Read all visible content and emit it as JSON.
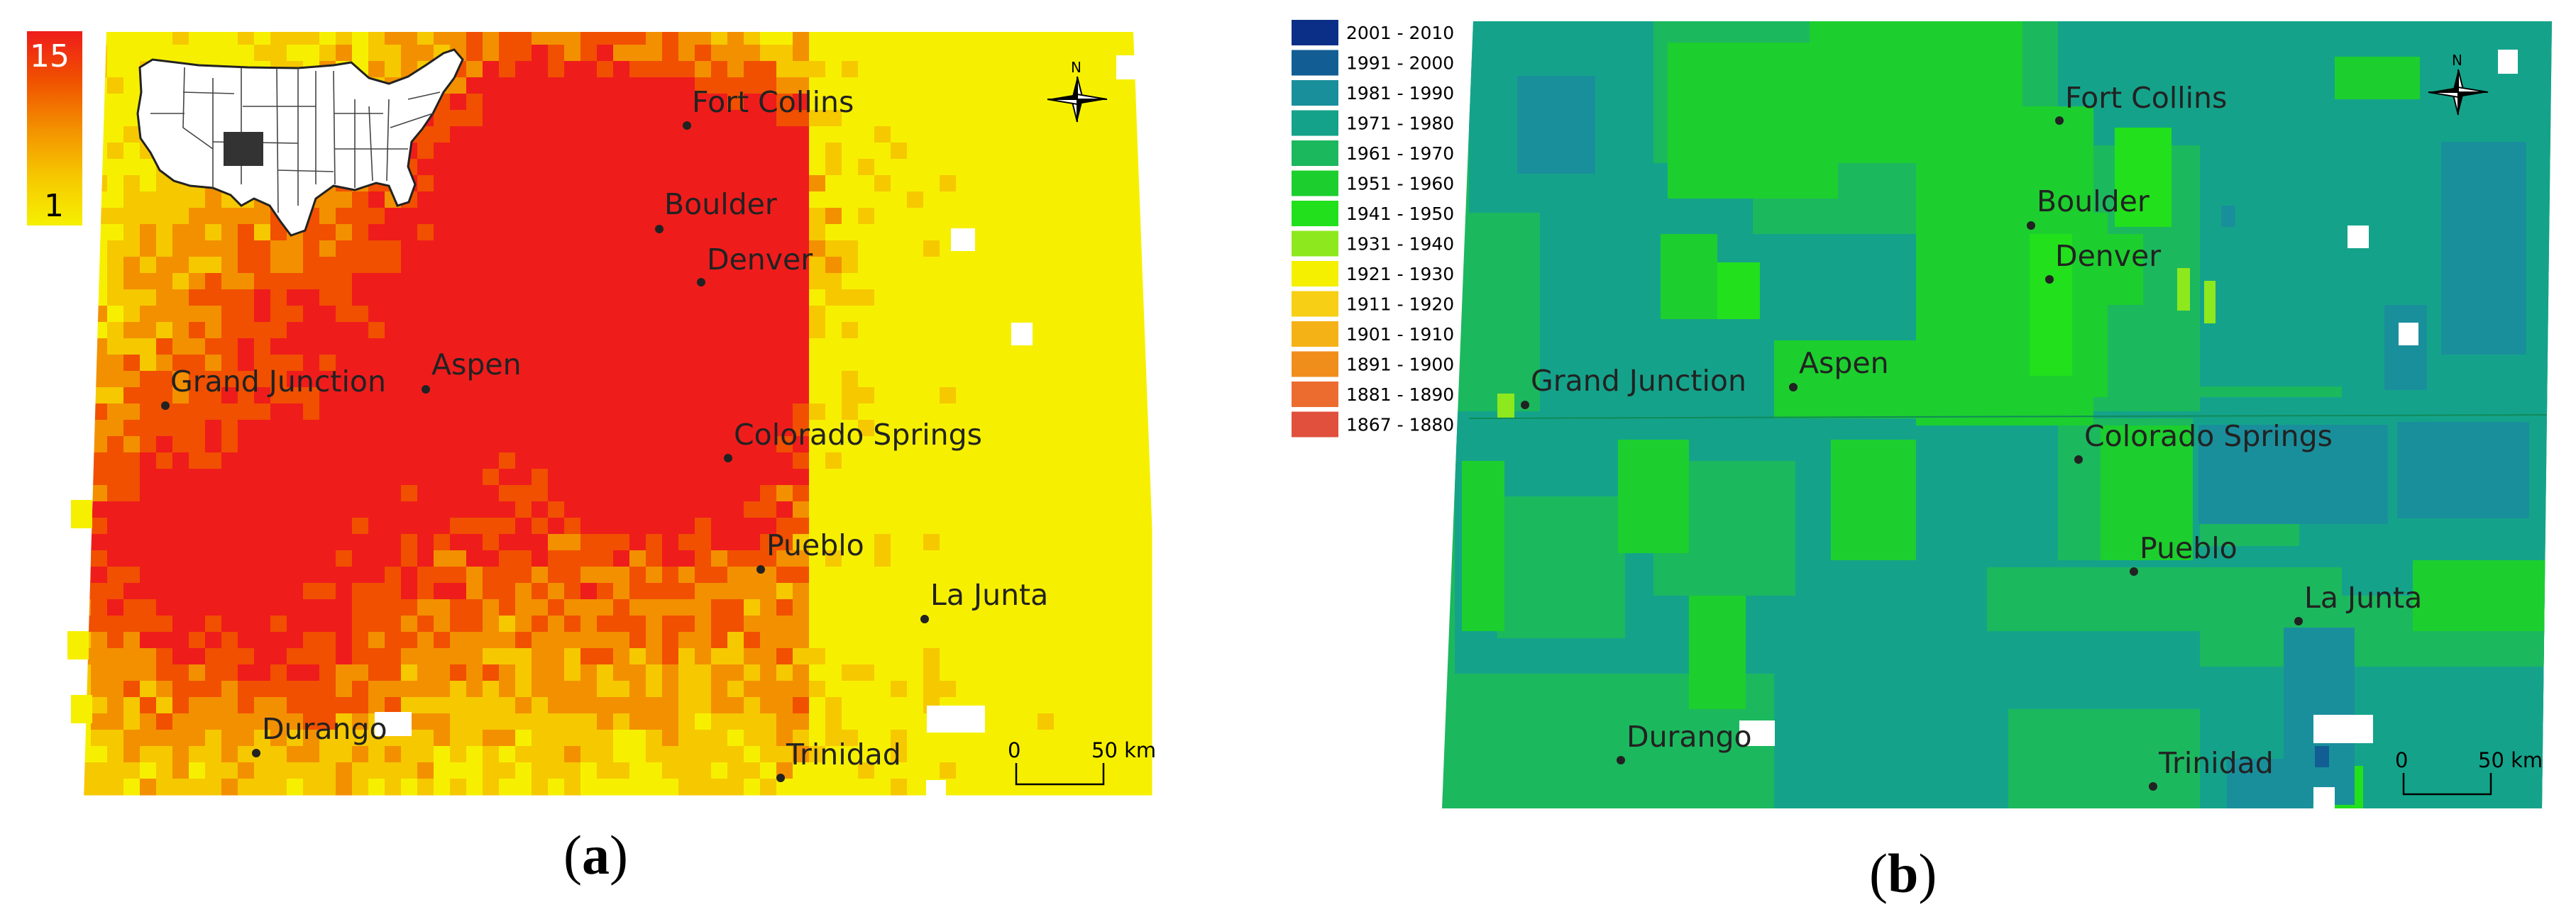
{
  "panel_a": {
    "label_open": "(",
    "label_letter": "a",
    "label_close": ")",
    "legend": {
      "max_label": "15",
      "min_label": "1",
      "min_value": 1,
      "max_value": 15,
      "ramp_colors": [
        "#f6f000",
        "#f6c800",
        "#f39000",
        "#f05000",
        "#ef1c1c"
      ]
    },
    "north_label": "N",
    "scale_start": "0",
    "scale_end": "50 km"
  },
  "panel_b": {
    "label_open": "(",
    "label_letter": "b",
    "label_close": ")",
    "legend": [
      {
        "label": "2001 - 2010",
        "color": "#0b2e87"
      },
      {
        "label": "1991 - 2000",
        "color": "#125e94"
      },
      {
        "label": "1981 - 1990",
        "color": "#1a8f9c"
      },
      {
        "label": "1971 - 1980",
        "color": "#14a38a"
      },
      {
        "label": "1961 - 1970",
        "color": "#1cb85e"
      },
      {
        "label": "1951 - 1960",
        "color": "#1ccf2e"
      },
      {
        "label": "1941 - 1950",
        "color": "#22e01c"
      },
      {
        "label": "1931 - 1940",
        "color": "#8ee81e"
      },
      {
        "label": "1921 - 1930",
        "color": "#f5f000"
      },
      {
        "label": "1911 - 1920",
        "color": "#f7cf14"
      },
      {
        "label": "1901 - 1910",
        "color": "#f5b216"
      },
      {
        "label": "1891 - 1900",
        "color": "#f08e1c"
      },
      {
        "label": "1881 - 1890",
        "color": "#ec6c30"
      },
      {
        "label": "1867 - 1880",
        "color": "#e0503c"
      }
    ],
    "north_label": "N",
    "scale_start": "0",
    "scale_end": "50 km"
  },
  "cities_a": [
    {
      "name": "Fort Collins"
    },
    {
      "name": "Boulder"
    },
    {
      "name": "Denver"
    },
    {
      "name": "Grand Junction"
    },
    {
      "name": "Aspen"
    },
    {
      "name": "Colorado Springs"
    },
    {
      "name": "Pueblo"
    },
    {
      "name": "La Junta"
    },
    {
      "name": "Durango"
    },
    {
      "name": "Trinidad"
    }
  ],
  "cities_b": [
    {
      "name": "Fort Collins"
    },
    {
      "name": "Boulder"
    },
    {
      "name": "Denver"
    },
    {
      "name": "Grand Junction"
    },
    {
      "name": "Aspen"
    },
    {
      "name": "Colorado Springs"
    },
    {
      "name": "Pueblo"
    },
    {
      "name": "La Junta"
    },
    {
      "name": "Durango"
    },
    {
      "name": "Trinidad"
    }
  ]
}
